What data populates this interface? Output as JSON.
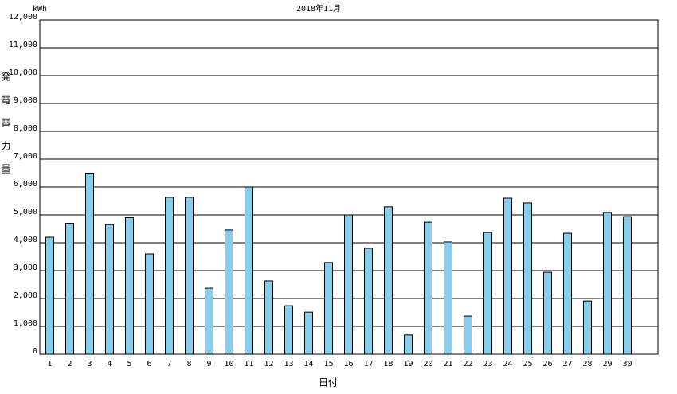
{
  "chart_data": {
    "type": "bar",
    "title": "2018年11月",
    "unit_label": "kWh",
    "y_label": "発電電力量",
    "x_label": "日付",
    "categories": [
      "1",
      "2",
      "3",
      "4",
      "5",
      "6",
      "7",
      "8",
      "9",
      "10",
      "11",
      "12",
      "13",
      "14",
      "15",
      "16",
      "17",
      "18",
      "19",
      "20",
      "21",
      "22",
      "23",
      "24",
      "25",
      "26",
      "27",
      "28",
      "29",
      "30"
    ],
    "values": [
      4200,
      4700,
      6500,
      4650,
      4900,
      3600,
      5630,
      5630,
      2370,
      4460,
      6000,
      2630,
      1740,
      1510,
      3290,
      5000,
      3800,
      5290,
      690,
      4740,
      4030,
      1370,
      4370,
      5600,
      5430,
      2940,
      4340,
      1910,
      5090,
      4940
    ],
    "color": "#87ceeb",
    "ylim": [
      0,
      12000
    ],
    "yticks": [
      0,
      {
        "value": 1000,
        "label": "1,000"
      },
      {
        "value": 2000,
        "label": "2,000"
      },
      {
        "value": 3000,
        "label": "3,000"
      },
      {
        "value": 4000,
        "label": "4,000"
      },
      {
        "value": 5000,
        "label": "5,000"
      },
      {
        "value": 6000,
        "label": "6,000"
      },
      {
        "value": 7000,
        "label": "7,000"
      },
      {
        "value": 8000,
        "label": "8,000"
      },
      {
        "value": 9000,
        "label": "9,000"
      },
      {
        "value": 10000,
        "label": "10,000"
      },
      {
        "value": 11000,
        "label": "11,000"
      },
      {
        "value": 12000,
        "label": "12,000"
      }
    ],
    "grid": true
  }
}
